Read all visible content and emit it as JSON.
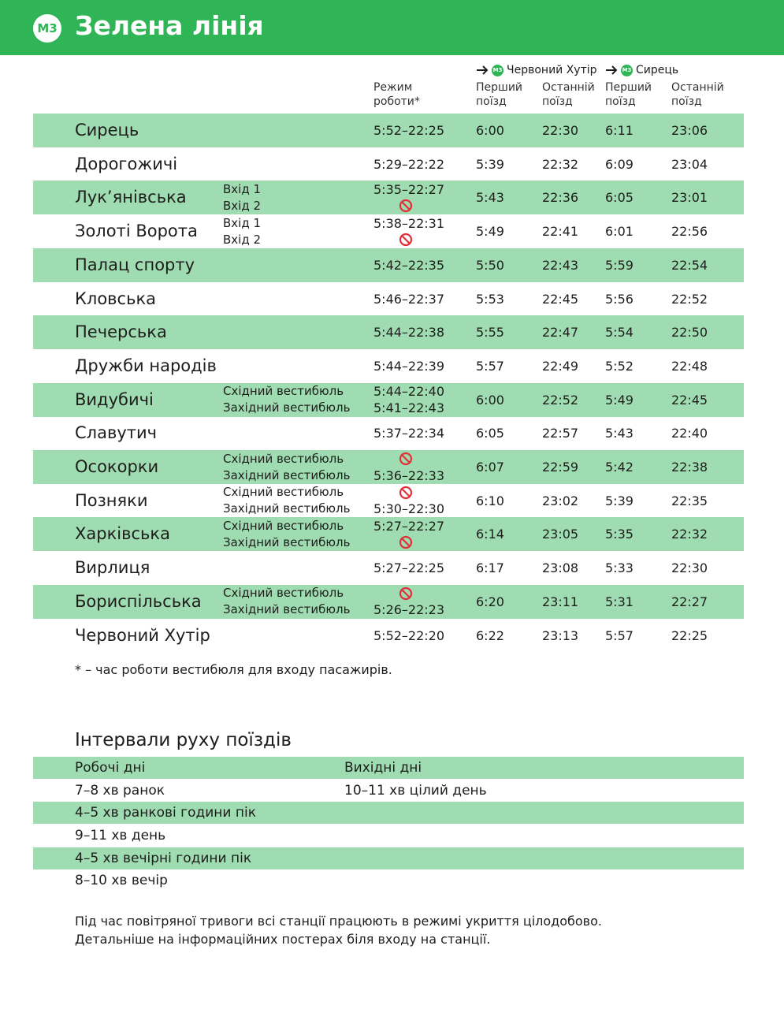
{
  "header": {
    "badge": "M3",
    "title": "Зелена лінія"
  },
  "table": {
    "mode_label": "Режим роботи*",
    "directions": [
      {
        "badge": "M3",
        "name": "Червоний Хутір",
        "first": "Перший поїзд",
        "last": "Останній поїзд"
      },
      {
        "badge": "M3",
        "name": "Сирець",
        "first": "Перший поїзд",
        "last": "Останній поїзд"
      }
    ],
    "stations": [
      {
        "name": "Сирець",
        "entrances": [
          {
            "hours": "5:52–22:25"
          }
        ],
        "times": [
          "6:00",
          "22:30",
          "6:11",
          "23:06"
        ]
      },
      {
        "name": "Дорогожичі",
        "entrances": [
          {
            "hours": "5:29–22:22"
          }
        ],
        "times": [
          "5:39",
          "22:32",
          "6:09",
          "23:04"
        ]
      },
      {
        "name": "Лук’янівська",
        "entrances": [
          {
            "label": "Вхід 1",
            "hours": "5:35–22:27"
          },
          {
            "label": "Вхід 2",
            "hours": null
          }
        ],
        "times": [
          "5:43",
          "22:36",
          "6:05",
          "23:01"
        ]
      },
      {
        "name": "Золоті Ворота",
        "entrances": [
          {
            "label": "Вхід 1",
            "hours": "5:38–22:31"
          },
          {
            "label": "Вхід 2",
            "hours": null
          }
        ],
        "times": [
          "5:49",
          "22:41",
          "6:01",
          "22:56"
        ]
      },
      {
        "name": "Палац спорту",
        "entrances": [
          {
            "hours": "5:42–22:35"
          }
        ],
        "times": [
          "5:50",
          "22:43",
          "5:59",
          "22:54"
        ]
      },
      {
        "name": "Кловська",
        "entrances": [
          {
            "hours": "5:46–22:37"
          }
        ],
        "times": [
          "5:53",
          "22:45",
          "5:56",
          "22:52"
        ]
      },
      {
        "name": "Печерська",
        "entrances": [
          {
            "hours": "5:44–22:38"
          }
        ],
        "times": [
          "5:55",
          "22:47",
          "5:54",
          "22:50"
        ]
      },
      {
        "name": "Дружби народів",
        "entrances": [
          {
            "hours": "5:44–22:39"
          }
        ],
        "times": [
          "5:57",
          "22:49",
          "5:52",
          "22:48"
        ]
      },
      {
        "name": "Видубичі",
        "entrances": [
          {
            "label": "Східний вестибюль",
            "hours": "5:44–22:40"
          },
          {
            "label": "Західний вестибюль",
            "hours": "5:41–22:43"
          }
        ],
        "times": [
          "6:00",
          "22:52",
          "5:49",
          "22:45"
        ]
      },
      {
        "name": "Славутич",
        "entrances": [
          {
            "hours": "5:37–22:34"
          }
        ],
        "times": [
          "6:05",
          "22:57",
          "5:43",
          "22:40"
        ]
      },
      {
        "name": "Осокорки",
        "entrances": [
          {
            "label": "Східний вестибюль",
            "hours": null
          },
          {
            "label": "Західний вестибюль",
            "hours": "5:36–22:33"
          }
        ],
        "times": [
          "6:07",
          "22:59",
          "5:42",
          "22:38"
        ]
      },
      {
        "name": "Позняки",
        "entrances": [
          {
            "label": "Східний вестибюль",
            "hours": null
          },
          {
            "label": "Західний вестибюль",
            "hours": "5:30–22:30"
          }
        ],
        "times": [
          "6:10",
          "23:02",
          "5:39",
          "22:35"
        ]
      },
      {
        "name": "Харківська",
        "entrances": [
          {
            "label": "Східний вестибюль",
            "hours": "5:27–22:27"
          },
          {
            "label": "Західний вестибюль",
            "hours": null
          }
        ],
        "times": [
          "6:14",
          "23:05",
          "5:35",
          "22:32"
        ]
      },
      {
        "name": "Вирлиця",
        "entrances": [
          {
            "hours": "5:27–22:25"
          }
        ],
        "times": [
          "6:17",
          "23:08",
          "5:33",
          "22:30"
        ]
      },
      {
        "name": "Бориспільська",
        "entrances": [
          {
            "label": "Східний вестибюль",
            "hours": null
          },
          {
            "label": "Західний вестибюль",
            "hours": "5:26–22:23"
          }
        ],
        "times": [
          "6:20",
          "23:11",
          "5:31",
          "22:27"
        ]
      },
      {
        "name": "Червоний Хутір",
        "entrances": [
          {
            "hours": "5:52–22:20"
          }
        ],
        "times": [
          "6:22",
          "23:13",
          "5:57",
          "22:25"
        ]
      }
    ],
    "footnote": "* – час роботи вестибюля для входу пасажирів."
  },
  "intervals": {
    "title": "Інтервали руху поїздів",
    "headers": [
      "Робочі дні",
      "Вихідні дні"
    ],
    "rows": [
      [
        "7–8 хв ранок",
        "10–11 хв цілий день"
      ],
      [
        "4–5 хв ранкові години пік"
      ],
      [
        "9–11 хв день"
      ],
      [
        "4–5 хв вечірні години пік"
      ],
      [
        "8–10 хв вечір"
      ]
    ]
  },
  "notes": [
    "Під час повітряної тривоги всі станції працюють в режимі укриття цілодобово.",
    "Детальніше на інформаційних постерах біля входу на станції."
  ]
}
